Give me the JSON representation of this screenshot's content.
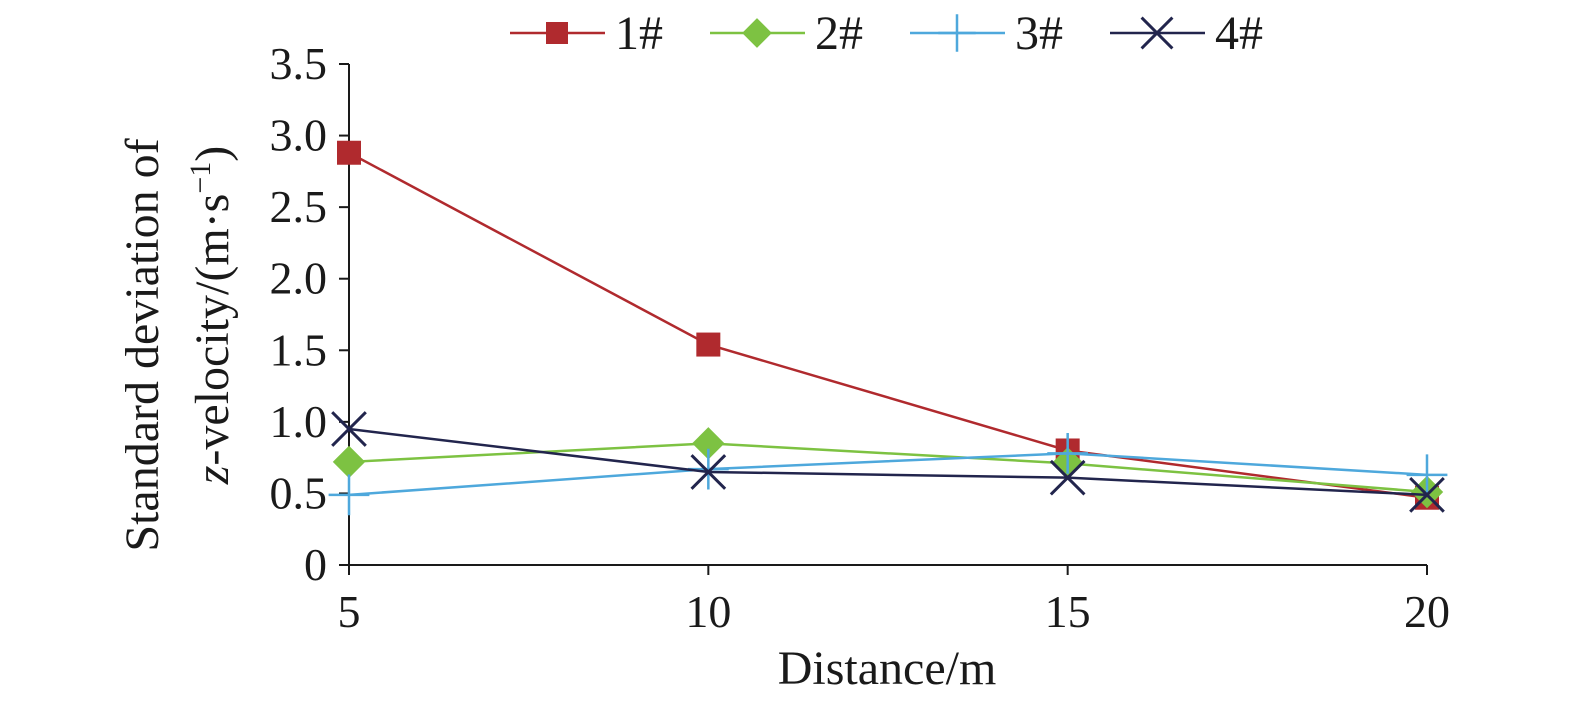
{
  "chart_data": {
    "type": "line",
    "title": "",
    "xlabel": "Distance/m",
    "ylabel_line1": "Standard deviation of",
    "ylabel_line2_italic": "z",
    "ylabel_line2_rest": "-velocity/(m·s",
    "ylabel_line2_sup": "−1",
    "ylabel_line2_close": ")",
    "x": [
      5,
      10,
      15,
      20
    ],
    "xlim": [
      5,
      20
    ],
    "ylim": [
      0,
      3.5
    ],
    "x_ticks": [
      "5",
      "10",
      "15",
      "20"
    ],
    "y_ticks": [
      "0",
      "0.5",
      "1.0",
      "1.5",
      "2.0",
      "2.5",
      "3.0",
      "3.5"
    ],
    "y_tick_values": [
      0,
      0.5,
      1.0,
      1.5,
      2.0,
      2.5,
      3.0,
      3.5
    ],
    "grid": false,
    "legend_position": "top",
    "series": [
      {
        "name": "1#",
        "color": "#b02a2e",
        "marker": "square",
        "values": [
          2.88,
          1.54,
          0.8,
          0.47
        ]
      },
      {
        "name": "2#",
        "color": "#7dc242",
        "marker": "diamond",
        "values": [
          0.72,
          0.85,
          0.71,
          0.51
        ]
      },
      {
        "name": "3#",
        "color": "#4ea8dc",
        "marker": "plus",
        "values": [
          0.49,
          0.67,
          0.78,
          0.63
        ]
      },
      {
        "name": "4#",
        "color": "#22254d",
        "marker": "x",
        "values": [
          0.95,
          0.65,
          0.61,
          0.49
        ]
      }
    ]
  }
}
